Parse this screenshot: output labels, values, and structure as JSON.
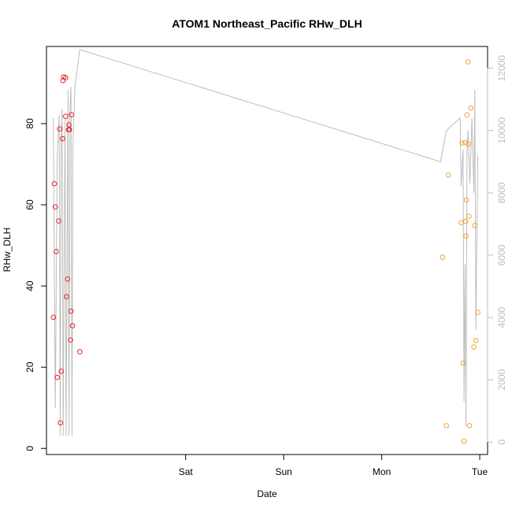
{
  "chart_data": {
    "type": "scatter",
    "title": "ATOM1 Northeast_Pacific RHw_DLH",
    "xlabel": "Date",
    "ylabel": "RHw_DLH",
    "x_ticks": [
      {
        "label": "Sat",
        "value": 1.0
      },
      {
        "label": "Sun",
        "value": 2.0
      },
      {
        "label": "Mon",
        "value": 3.0
      },
      {
        "label": "Tue",
        "value": 4.0
      }
    ],
    "xlim": [
      -0.42,
      4.08
    ],
    "ylim": [
      -1.5,
      99
    ],
    "y_ticks": [
      0,
      20,
      40,
      60,
      80
    ],
    "y2lim": [
      -400,
      12700
    ],
    "y2_ticks": [
      0,
      2000,
      4000,
      6000,
      8000,
      10000,
      12000
    ],
    "colors": {
      "series1": "#e8202a",
      "series2": "#f5a033",
      "altitude": "#bdbdbd",
      "frame": "#000000"
    },
    "series": [
      {
        "marker": "circle",
        "color": "#e8202a",
        "points": [
          [
            -0.35,
            32.3
          ],
          [
            -0.34,
            65.2
          ],
          [
            -0.33,
            59.5
          ],
          [
            -0.32,
            48.5
          ],
          [
            -0.31,
            17.5
          ],
          [
            -0.295,
            56.0
          ],
          [
            -0.285,
            78.7
          ],
          [
            -0.278,
            6.3
          ],
          [
            -0.27,
            19.0
          ],
          [
            -0.255,
            76.3
          ],
          [
            -0.252,
            90.6
          ],
          [
            -0.245,
            91.5
          ],
          [
            -0.225,
            91.3
          ],
          [
            -0.225,
            81.8
          ],
          [
            -0.215,
            37.4
          ],
          [
            -0.205,
            41.7
          ],
          [
            -0.195,
            78.5
          ],
          [
            -0.19,
            79.7
          ],
          [
            -0.185,
            78.5
          ],
          [
            -0.175,
            26.7
          ],
          [
            -0.17,
            33.8
          ],
          [
            -0.165,
            82.2
          ],
          [
            -0.155,
            30.2
          ],
          [
            -0.08,
            23.8
          ]
        ]
      },
      {
        "marker": "circle",
        "color": "#f5a033",
        "points": [
          [
            3.62,
            47.1
          ],
          [
            3.66,
            5.6
          ],
          [
            3.68,
            67.3
          ],
          [
            3.81,
            55.6
          ],
          [
            3.82,
            75.2
          ],
          [
            3.83,
            21.0
          ],
          [
            3.84,
            1.8
          ],
          [
            3.85,
            75.3
          ],
          [
            3.855,
            55.9
          ],
          [
            3.86,
            52.3
          ],
          [
            3.865,
            61.2
          ],
          [
            3.87,
            82.1
          ],
          [
            3.88,
            95.2
          ],
          [
            3.885,
            75.0
          ],
          [
            3.89,
            57.2
          ],
          [
            3.895,
            5.6
          ],
          [
            3.91,
            83.8
          ],
          [
            3.94,
            25.0
          ],
          [
            3.95,
            54.9
          ],
          [
            3.96,
            26.6
          ],
          [
            3.98,
            33.5
          ]
        ]
      }
    ],
    "altitude_series": {
      "axis": "right",
      "color": "#bdbdbd",
      "points": [
        [
          -0.35,
          10400
        ],
        [
          -0.33,
          1100
        ],
        [
          -0.31,
          9200
        ],
        [
          -0.29,
          10500
        ],
        [
          -0.28,
          200
        ],
        [
          -0.27,
          9800
        ],
        [
          -0.26,
          10700
        ],
        [
          -0.25,
          200
        ],
        [
          -0.24,
          5700
        ],
        [
          -0.23,
          10400
        ],
        [
          -0.22,
          200
        ],
        [
          -0.2,
          11300
        ],
        [
          -0.19,
          200
        ],
        [
          -0.18,
          10800
        ],
        [
          -0.17,
          11400
        ],
        [
          -0.16,
          200
        ],
        [
          -0.15,
          9500
        ],
        [
          -0.13,
          11400
        ],
        [
          -0.08,
          12600
        ],
        [
          3.6,
          9000
        ],
        [
          3.66,
          10000
        ],
        [
          3.8,
          10400
        ],
        [
          3.81,
          8200
        ],
        [
          3.83,
          9400
        ],
        [
          3.84,
          1300
        ],
        [
          3.85,
          5700
        ],
        [
          3.86,
          500
        ],
        [
          3.87,
          9300
        ],
        [
          3.88,
          10000
        ],
        [
          3.9,
          8300
        ],
        [
          3.92,
          10400
        ],
        [
          3.94,
          8000
        ],
        [
          3.95,
          11300
        ],
        [
          3.96,
          3600
        ],
        [
          3.98,
          9200
        ]
      ]
    }
  }
}
